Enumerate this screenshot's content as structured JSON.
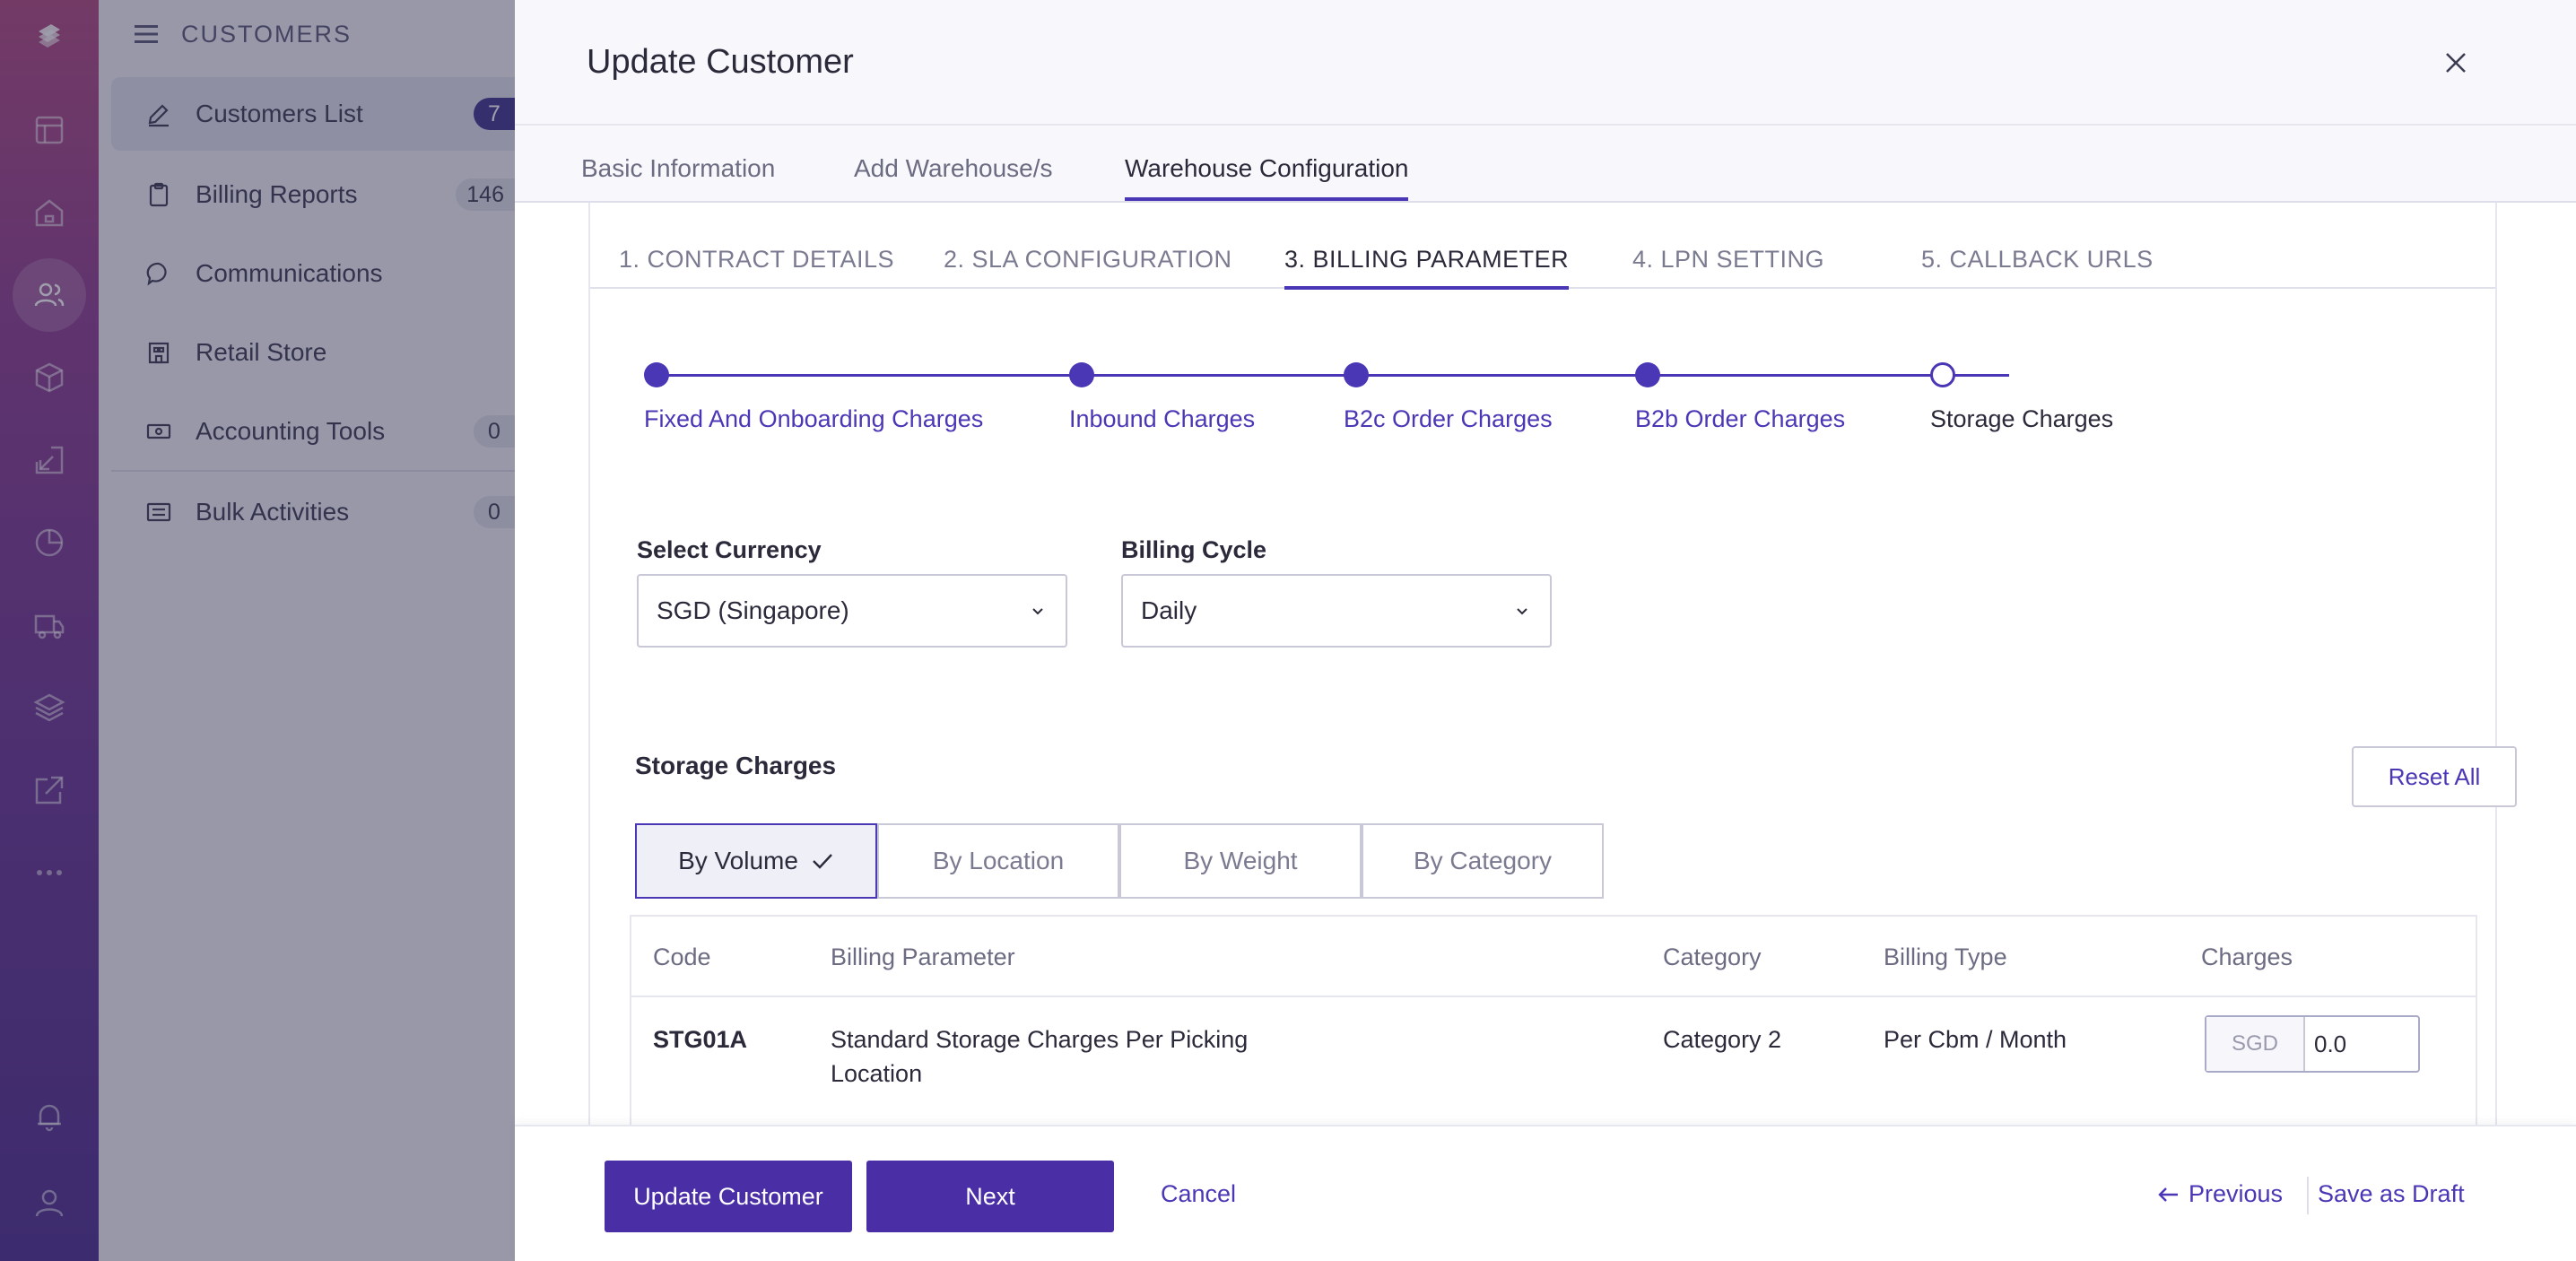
{
  "sidebar": {
    "title": "CUSTOMERS",
    "items": [
      {
        "label": "Customers List",
        "badge": "7"
      },
      {
        "label": "Billing Reports",
        "badge": "146"
      },
      {
        "label": "Communications",
        "badge": ""
      },
      {
        "label": "Retail Store",
        "badge": ""
      },
      {
        "label": "Accounting Tools",
        "badge": "0"
      },
      {
        "label": "Bulk Activities",
        "badge": "0"
      }
    ]
  },
  "modal": {
    "title": "Update Customer",
    "tabs": [
      "Basic Information",
      "Add Warehouse/s",
      "Warehouse Configuration"
    ],
    "active_tab": "Warehouse Configuration",
    "sub_tabs": [
      "1. CONTRACT DETAILS",
      "2. SLA CONFIGURATION",
      "3. BILLING PARAMETER",
      "4. LPN SETTING",
      "5. CALLBACK URLS"
    ],
    "active_sub_tab": "3. BILLING PARAMETER"
  },
  "stepper": {
    "steps": [
      "Fixed And Onboarding Charges",
      "Inbound Charges",
      "B2c Order Charges",
      "B2b Order Charges",
      "Storage Charges"
    ],
    "current": "Storage Charges"
  },
  "form": {
    "currency_label": "Select Currency",
    "currency_value": "SGD (Singapore)",
    "cycle_label": "Billing Cycle",
    "cycle_value": "Daily"
  },
  "storage": {
    "title": "Storage Charges",
    "reset_label": "Reset All",
    "segments": [
      "By Volume",
      "By Location",
      "By Weight",
      "By Category"
    ],
    "active_segment": "By Volume",
    "table": {
      "headers": [
        "Code",
        "Billing Parameter",
        "Category",
        "Billing Type",
        "Charges"
      ],
      "rows": [
        {
          "code": "STG01A",
          "param_line1": "Standard Storage Charges Per Picking",
          "param_line2": "Location",
          "category": "Category 2",
          "billing_type": "Per Cbm / Month",
          "currency": "SGD",
          "charge": "0.0"
        }
      ]
    }
  },
  "footer": {
    "update": "Update Customer",
    "next": "Next",
    "cancel": "Cancel",
    "previous": "Previous",
    "save_draft": "Save as Draft"
  },
  "colors": {
    "accent": "#4a37b5",
    "primary_button": "#4a2ea6",
    "rail_top": "#b14a7f",
    "rail_bottom": "#4d2f8e"
  }
}
